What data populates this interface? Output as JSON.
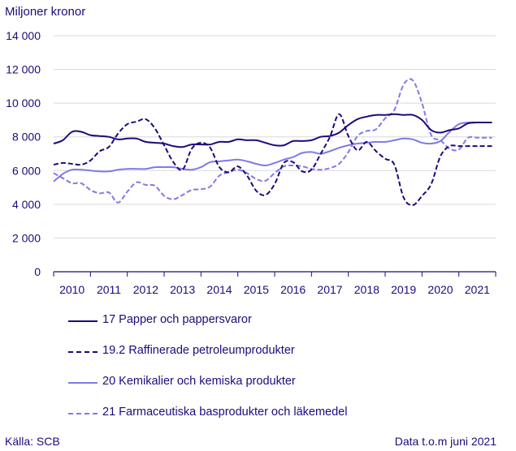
{
  "chart_data": {
    "type": "line",
    "title": "",
    "unit_label": "Miljoner kronor",
    "xlabel": "",
    "ylabel": "Miljoner kronor",
    "ylim": [
      0,
      14000
    ],
    "yticks": [
      0,
      2000,
      4000,
      6000,
      8000,
      10000,
      12000,
      14000
    ],
    "ytick_labels": [
      "0",
      "2 000",
      "4 000",
      "6 000",
      "8 000",
      "10 000",
      "12 000",
      "14 000"
    ],
    "xlim": [
      2009.5,
      2021.5
    ],
    "xtick_labels": [
      "2010",
      "2011",
      "2012",
      "2013",
      "2014",
      "2015",
      "2016",
      "2017",
      "2018",
      "2019",
      "2020",
      "2021"
    ],
    "grid": "horizontal",
    "legend_position": "bottom",
    "x": [
      2009.5,
      2009.75,
      2010.0,
      2010.25,
      2010.5,
      2010.75,
      2011.0,
      2011.25,
      2011.5,
      2011.75,
      2012.0,
      2012.25,
      2012.5,
      2012.75,
      2013.0,
      2013.25,
      2013.5,
      2013.75,
      2014.0,
      2014.25,
      2014.5,
      2014.75,
      2015.0,
      2015.25,
      2015.5,
      2015.75,
      2016.0,
      2016.25,
      2016.5,
      2016.75,
      2017.0,
      2017.25,
      2017.5,
      2017.75,
      2018.0,
      2018.25,
      2018.5,
      2018.75,
      2019.0,
      2019.25,
      2019.5,
      2019.75,
      2020.0,
      2020.25,
      2020.5,
      2020.75,
      2021.0,
      2021.25,
      2021.4
    ],
    "series": [
      {
        "name": "17 Papper och pappersvaror",
        "color": "#1e0a7a",
        "dash": "solid",
        "values": [
          7600,
          7800,
          8300,
          8300,
          8100,
          8050,
          8000,
          7850,
          7900,
          7900,
          7700,
          7650,
          7600,
          7450,
          7400,
          7550,
          7550,
          7550,
          7700,
          7700,
          7850,
          7800,
          7800,
          7650,
          7500,
          7500,
          7750,
          7750,
          7800,
          8000,
          8050,
          8250,
          8700,
          9050,
          9200,
          9300,
          9300,
          9350,
          9300,
          9300,
          9000,
          8400,
          8250,
          8400,
          8500,
          8800,
          8850,
          8850,
          8850
        ]
      },
      {
        "name": "19.2 Raffinerade petroleumprodukter",
        "color": "#1e0a7a",
        "dash": "dashed",
        "values": [
          6350,
          6450,
          6400,
          6350,
          6600,
          7150,
          7400,
          8200,
          8750,
          8900,
          9050,
          8500,
          7500,
          6500,
          6050,
          7300,
          7650,
          7350,
          6200,
          5900,
          6250,
          5700,
          4800,
          4550,
          5200,
          6450,
          6500,
          5950,
          6050,
          7000,
          8000,
          9350,
          8050,
          7200,
          7700,
          7150,
          6700,
          6350,
          4400,
          3950,
          4500,
          5200,
          6850,
          7450,
          7450,
          7450,
          7450,
          7450,
          7450
        ]
      },
      {
        "name": "20 Kemikalier och kemiska produkter",
        "color": "#7f7ae6",
        "dash": "solid",
        "values": [
          5350,
          5800,
          6050,
          6050,
          6000,
          5950,
          5950,
          6050,
          6100,
          6100,
          6100,
          6200,
          6200,
          6200,
          6100,
          6050,
          6200,
          6500,
          6550,
          6600,
          6650,
          6550,
          6400,
          6300,
          6450,
          6650,
          6800,
          7050,
          7100,
          7000,
          7150,
          7350,
          7500,
          7600,
          7650,
          7700,
          7700,
          7800,
          7900,
          7850,
          7650,
          7600,
          7750,
          8300,
          8750,
          8850,
          8850,
          8850,
          8850
        ]
      },
      {
        "name": "21 Farmaceutiska basprodukter och läkemedel",
        "color": "#7f7ae6",
        "dash": "dashed",
        "values": [
          5850,
          5550,
          5250,
          5250,
          4850,
          4650,
          4700,
          4100,
          4750,
          5300,
          5150,
          5100,
          4500,
          4300,
          4550,
          4850,
          4900,
          5050,
          5700,
          5900,
          6050,
          5850,
          5500,
          5400,
          5850,
          6250,
          6300,
          6250,
          6100,
          6050,
          6150,
          6400,
          7100,
          8050,
          8350,
          8450,
          9100,
          9600,
          11100,
          11350,
          10000,
          8100,
          7800,
          7300,
          7250,
          7950,
          7950,
          7950,
          7950
        ]
      }
    ]
  },
  "footer": {
    "source": "Källa: SCB",
    "note": "Data t.o.m juni 2021"
  }
}
